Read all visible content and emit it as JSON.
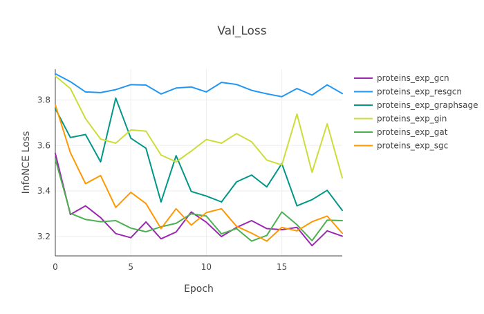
{
  "chart_data": {
    "type": "line",
    "title": "Val_Loss",
    "xlabel": "Epoch",
    "ylabel": "InfoNCE Loss",
    "xlim": [
      0,
      19
    ],
    "ylim": [
      3.115,
      3.935
    ],
    "xticks": [
      0,
      5,
      10,
      15
    ],
    "yticks": [
      3.2,
      3.4,
      3.6,
      3.8
    ],
    "grid": true,
    "legend_position": "top-right",
    "x": [
      0,
      1,
      2,
      3,
      4,
      5,
      6,
      7,
      8,
      9,
      10,
      11,
      12,
      13,
      14,
      15,
      16,
      17,
      18,
      19
    ],
    "series": [
      {
        "name": "proteins_exp_gcn",
        "color": "#9c27b0",
        "values": [
          3.565,
          3.297,
          3.335,
          3.283,
          3.213,
          3.195,
          3.264,
          3.19,
          3.22,
          3.308,
          3.263,
          3.2,
          3.24,
          3.27,
          3.235,
          3.23,
          3.24,
          3.16,
          3.225,
          3.202
        ]
      },
      {
        "name": "proteins_exp_resgcn",
        "color": "#2196f3",
        "values": [
          3.915,
          3.88,
          3.835,
          3.832,
          3.845,
          3.867,
          3.865,
          3.826,
          3.852,
          3.857,
          3.835,
          3.877,
          3.868,
          3.842,
          3.827,
          3.814,
          3.85,
          3.821,
          3.866,
          3.828
        ]
      },
      {
        "name": "proteins_exp_graphsage",
        "color": "#009688",
        "values": [
          3.762,
          3.635,
          3.648,
          3.528,
          3.808,
          3.632,
          3.588,
          3.352,
          3.555,
          3.398,
          3.378,
          3.352,
          3.44,
          3.47,
          3.418,
          3.52,
          3.335,
          3.362,
          3.403,
          3.315
        ]
      },
      {
        "name": "proteins_exp_gin",
        "color": "#cddc39",
        "values": [
          3.905,
          3.85,
          3.718,
          3.628,
          3.61,
          3.668,
          3.663,
          3.558,
          3.528,
          3.575,
          3.626,
          3.61,
          3.652,
          3.616,
          3.536,
          3.514,
          3.738,
          3.482,
          3.695,
          3.458
        ]
      },
      {
        "name": "proteins_exp_gat",
        "color": "#4caf50",
        "values": [
          3.54,
          3.302,
          3.275,
          3.265,
          3.27,
          3.237,
          3.221,
          3.243,
          3.258,
          3.3,
          3.29,
          3.212,
          3.235,
          3.18,
          3.205,
          3.308,
          3.252,
          3.182,
          3.272,
          3.27
        ]
      },
      {
        "name": "proteins_exp_sgc",
        "color": "#ff9800",
        "values": [
          3.778,
          3.568,
          3.432,
          3.468,
          3.328,
          3.394,
          3.345,
          3.235,
          3.322,
          3.25,
          3.305,
          3.322,
          3.245,
          3.215,
          3.18,
          3.24,
          3.225,
          3.265,
          3.29,
          3.215
        ]
      }
    ]
  }
}
